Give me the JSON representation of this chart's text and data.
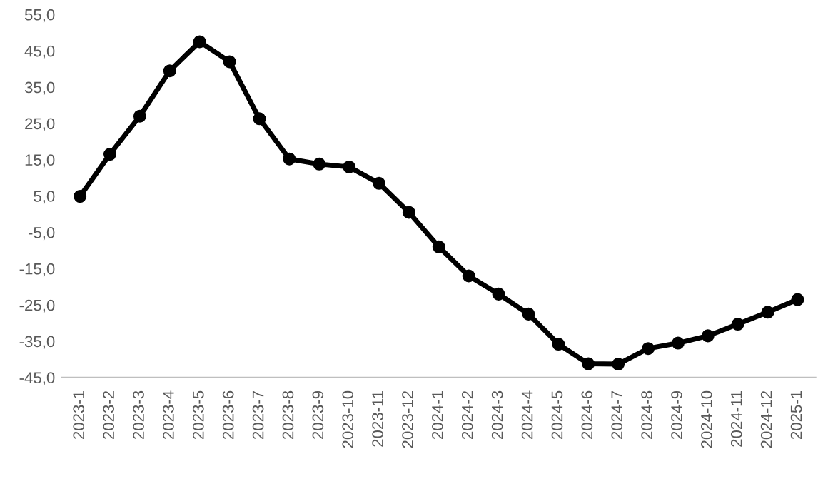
{
  "chart_data": {
    "type": "line",
    "categories": [
      "2023-1",
      "2023-2",
      "2023-3",
      "2023-4",
      "2023-5",
      "2023-6",
      "2023-7",
      "2023-8",
      "2023-9",
      "2023-10",
      "2023-11",
      "2023-12",
      "2024-1",
      "2024-2",
      "2024-3",
      "2024-4",
      "2024-5",
      "2024-6",
      "2024-7",
      "2024-8",
      "2024-9",
      "2024-10",
      "2024-11",
      "2024-12",
      "2025-1"
    ],
    "series": [
      {
        "color": "#000000",
        "values": [
          4.9,
          16.5,
          27,
          39.5,
          47.5,
          42,
          26.3,
          15.2,
          13.8,
          13,
          8.5,
          0.5,
          -9,
          -17,
          -22,
          -27.5,
          -35.8,
          -41.2,
          -41.3,
          -37,
          -35.5,
          -33.5,
          -30.3,
          -27,
          -23.5
        ]
      }
    ],
    "ylim": [
      -45,
      55
    ],
    "yticks": [
      {
        "value": -45,
        "label": "-45,0"
      },
      {
        "value": -35,
        "label": "-35,0"
      },
      {
        "value": -25,
        "label": "-25,0"
      },
      {
        "value": -15,
        "label": "-15,0"
      },
      {
        "value": -5,
        "label": "-5,0"
      },
      {
        "value": 5,
        "label": "5,0"
      },
      {
        "value": 15,
        "label": "15,0"
      },
      {
        "value": 25,
        "label": "25,0"
      },
      {
        "value": 35,
        "label": "35,0"
      },
      {
        "value": 45,
        "label": "45,0"
      },
      {
        "value": 55,
        "label": "55,0"
      }
    ],
    "grid": false,
    "marker": "circle",
    "line_style": "solid",
    "legend": false
  }
}
